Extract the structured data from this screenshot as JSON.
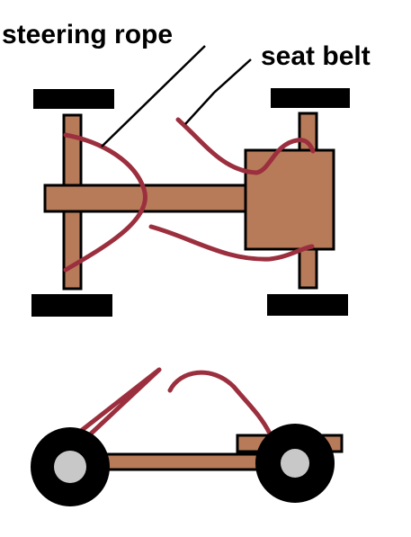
{
  "labels": {
    "steering_rope": "steering rope",
    "seat_belt": "seat belt"
  },
  "colors": {
    "wood": "#b87b5a",
    "rope": "#9c2f3e",
    "wheel": "#000000",
    "hub": "#c8c8c8",
    "outline": "#000000",
    "background": "#ffffff"
  },
  "views": [
    {
      "name": "top view",
      "parts": [
        "front axle",
        "rear axle",
        "main beam",
        "seat",
        "4 wheels",
        "steering rope",
        "seat belt"
      ]
    },
    {
      "name": "side view",
      "parts": [
        "frame beam",
        "seat",
        "2 wheels",
        "steering rope",
        "seat belt"
      ]
    }
  ]
}
